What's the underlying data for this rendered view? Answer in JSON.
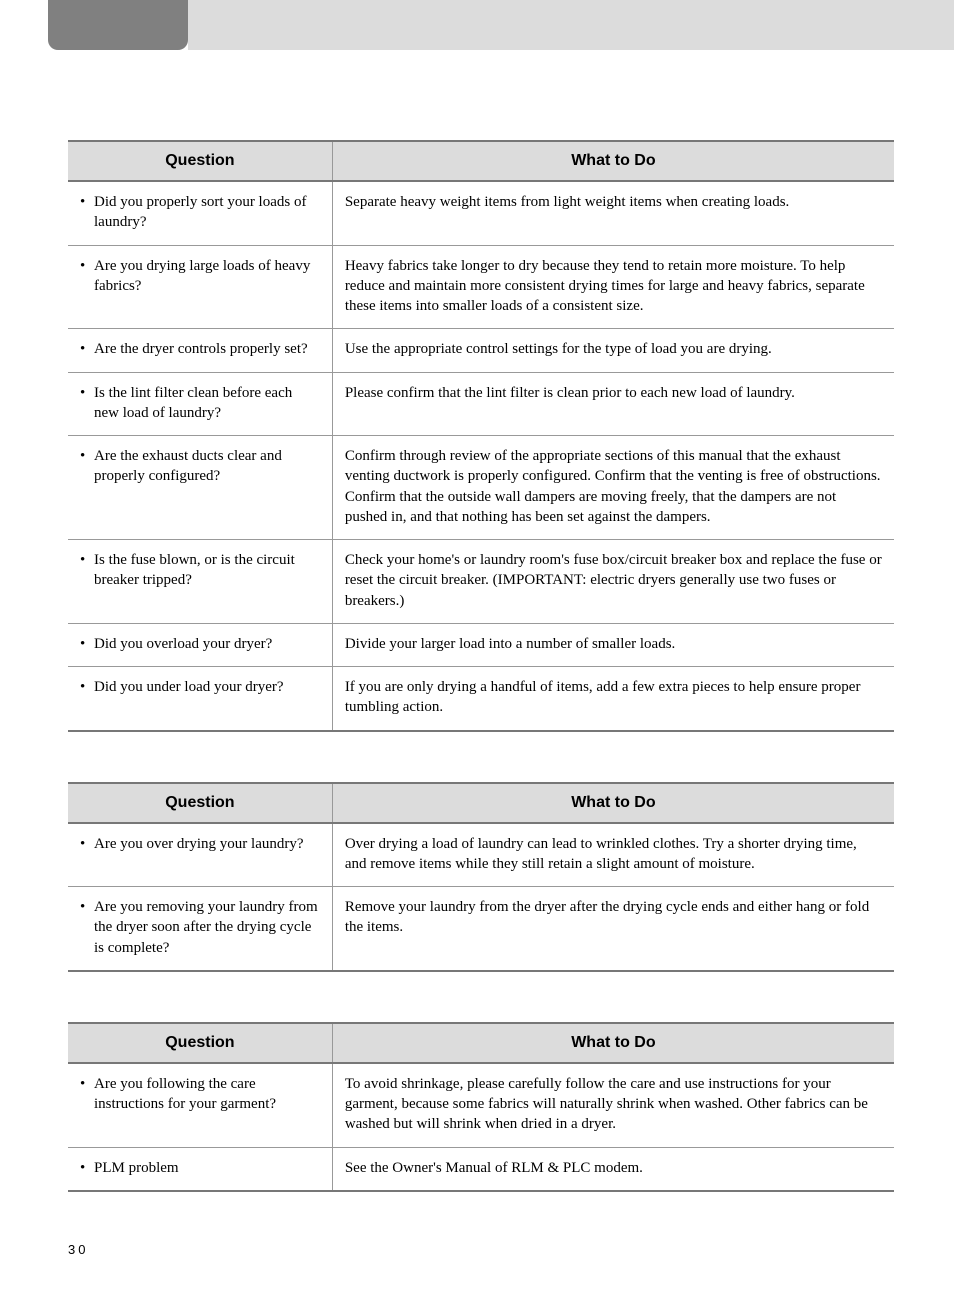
{
  "page_number": "30",
  "colors": {
    "header_tab": "#808080",
    "header_bar": "#dcdcdc",
    "th_bg": "#dcdcdc",
    "border": "#999999",
    "border_heavy": "#777777",
    "text": "#000000"
  },
  "tables": [
    {
      "headers": [
        "Question",
        "What to Do"
      ],
      "rows": [
        {
          "q": "Did you properly sort your loads of laundry?",
          "a": "Separate heavy weight items from light weight items when creating loads."
        },
        {
          "q": "Are you drying large loads of heavy fabrics?",
          "a": "Heavy fabrics take longer to dry because they tend to retain more moisture.  To help reduce and maintain more consistent drying times for large and heavy fabrics, separate these items into smaller loads of a consistent size."
        },
        {
          "q": "Are the dryer controls properly set?",
          "a": "Use the appropriate control settings for the type of load you are drying."
        },
        {
          "q": "Is the lint filter clean before each new load of laundry?",
          "a": "Please confirm that the lint filter is clean prior to each new load of laundry."
        },
        {
          "q": "Are the exhaust ducts clear and properly configured?",
          "a": "Confirm through review of the appropriate sections of this manual that the exhaust venting ductwork is properly configured.  Confirm that the venting is free of obstructions.  Confirm that the outside wall dampers are moving freely, that the dampers are not pushed in, and that nothing has been set against the dampers."
        },
        {
          "q": "Is the fuse blown, or is the circuit breaker tripped?",
          "a": "Check your home's or laundry room's fuse box/circuit breaker box and replace the fuse or reset the circuit breaker.  (IMPORTANT: electric dryers generally use two fuses or breakers.)"
        },
        {
          "q": "Did you overload your dryer?",
          "a": "Divide your larger load into a number of smaller loads."
        },
        {
          "q": "Did you under load your dryer?",
          "a": "If you are only drying a handful of items, add a few extra pieces to help ensure proper tumbling action."
        }
      ]
    },
    {
      "headers": [
        "Question",
        "What to Do"
      ],
      "rows": [
        {
          "q": "Are you over drying your laundry?",
          "a": "Over drying a load of laundry can lead to wrinkled clothes.  Try a shorter drying time, and remove items while they still retain a slight amount of moisture."
        },
        {
          "q": "Are you removing your laundry from the dryer soon after the drying cycle is complete?",
          "a": "Remove your laundry from the dryer after the drying cycle ends and either hang or fold the items."
        }
      ]
    },
    {
      "headers": [
        "Question",
        "What to Do"
      ],
      "rows": [
        {
          "q": "Are you following the care instructions for your garment?",
          "a": "To avoid shrinkage, please carefully follow the care and use instructions for your garment, because some fabrics will naturally shrink when washed.  Other fabrics can be washed but will shrink when dried in a dryer."
        },
        {
          "q": "PLM problem",
          "a": "See the Owner's Manual of RLM & PLC modem."
        }
      ]
    }
  ]
}
